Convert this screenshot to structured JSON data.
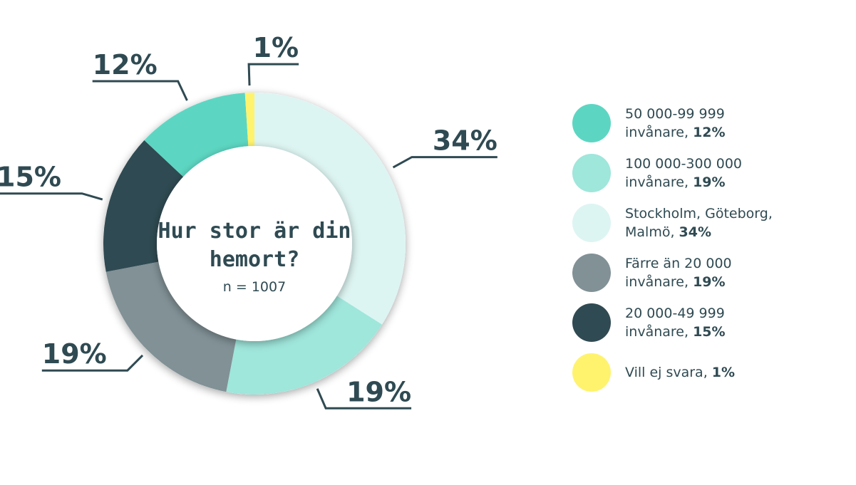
{
  "chart_data": {
    "type": "pie",
    "title": "Hur stor är din hemort?",
    "title_lines": [
      "Hur stor är din",
      "hemort?"
    ],
    "subtitle": "n = 1007",
    "slices": [
      {
        "label_line1": "Stockholm, Göteborg,",
        "label_line2": "Malmö",
        "value": 34,
        "display": "34%",
        "color": "#ddf5f2"
      },
      {
        "label_line1": "100 000-300 000",
        "label_line2": "invånare",
        "value": 19,
        "display": "19%",
        "color": "#9fe6db"
      },
      {
        "label_line1": "Färre än 20 000",
        "label_line2": "invånare",
        "value": 19,
        "display": "19%",
        "color": "#819196"
      },
      {
        "label_line1": "20 000-49 999",
        "label_line2": "invånare",
        "value": 15,
        "display": "15%",
        "color": "#2f4a52"
      },
      {
        "label_line1": "50 000-99 999",
        "label_line2": "invånare",
        "value": 12,
        "display": "12%",
        "color": "#5cd6c2"
      },
      {
        "label_line1": "Vill ej svara",
        "label_line2": "",
        "value": 1,
        "display": "1%",
        "color": "#fff36e"
      }
    ],
    "legend_order": [
      4,
      1,
      0,
      2,
      3,
      5
    ],
    "legend_placement": "right"
  }
}
